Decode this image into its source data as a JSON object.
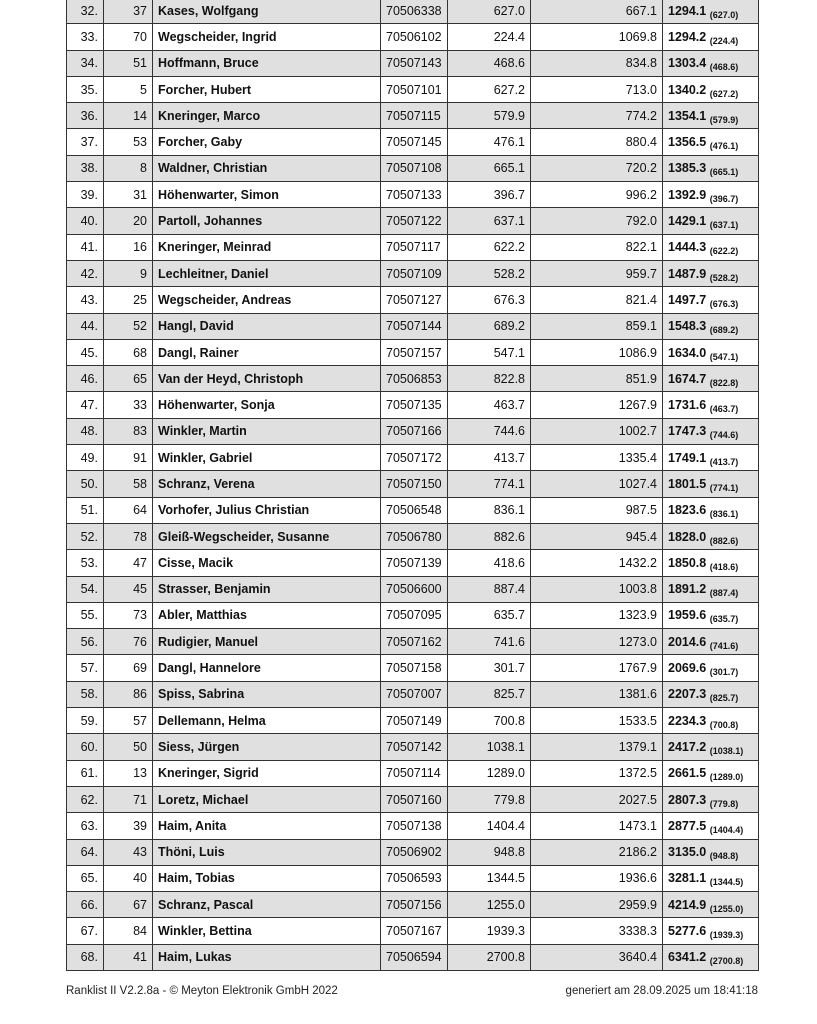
{
  "rows": [
    {
      "rank": "32.",
      "start": "37",
      "name": "Kases, Wolfgang",
      "id": "70506338",
      "v1": "627.0",
      "v2": "667.1",
      "total": "1294.1",
      "best": "(627.0)"
    },
    {
      "rank": "33.",
      "start": "70",
      "name": "Wegscheider, Ingrid",
      "id": "70506102",
      "v1": "224.4",
      "v2": "1069.8",
      "total": "1294.2",
      "best": "(224.4)"
    },
    {
      "rank": "34.",
      "start": "51",
      "name": "Hoffmann, Bruce",
      "id": "70507143",
      "v1": "468.6",
      "v2": "834.8",
      "total": "1303.4",
      "best": "(468.6)"
    },
    {
      "rank": "35.",
      "start": "5",
      "name": "Forcher, Hubert",
      "id": "70507101",
      "v1": "627.2",
      "v2": "713.0",
      "total": "1340.2",
      "best": "(627.2)"
    },
    {
      "rank": "36.",
      "start": "14",
      "name": "Kneringer, Marco",
      "id": "70507115",
      "v1": "579.9",
      "v2": "774.2",
      "total": "1354.1",
      "best": "(579.9)"
    },
    {
      "rank": "37.",
      "start": "53",
      "name": "Forcher, Gaby",
      "id": "70507145",
      "v1": "476.1",
      "v2": "880.4",
      "total": "1356.5",
      "best": "(476.1)"
    },
    {
      "rank": "38.",
      "start": "8",
      "name": "Waldner, Christian",
      "id": "70507108",
      "v1": "665.1",
      "v2": "720.2",
      "total": "1385.3",
      "best": "(665.1)"
    },
    {
      "rank": "39.",
      "start": "31",
      "name": "Höhenwarter, Simon",
      "id": "70507133",
      "v1": "396.7",
      "v2": "996.2",
      "total": "1392.9",
      "best": "(396.7)"
    },
    {
      "rank": "40.",
      "start": "20",
      "name": "Partoll, Johannes",
      "id": "70507122",
      "v1": "637.1",
      "v2": "792.0",
      "total": "1429.1",
      "best": "(637.1)"
    },
    {
      "rank": "41.",
      "start": "16",
      "name": "Kneringer, Meinrad",
      "id": "70507117",
      "v1": "622.2",
      "v2": "822.1",
      "total": "1444.3",
      "best": "(622.2)"
    },
    {
      "rank": "42.",
      "start": "9",
      "name": "Lechleitner, Daniel",
      "id": "70507109",
      "v1": "528.2",
      "v2": "959.7",
      "total": "1487.9",
      "best": "(528.2)"
    },
    {
      "rank": "43.",
      "start": "25",
      "name": "Wegscheider, Andreas",
      "id": "70507127",
      "v1": "676.3",
      "v2": "821.4",
      "total": "1497.7",
      "best": "(676.3)"
    },
    {
      "rank": "44.",
      "start": "52",
      "name": "Hangl, David",
      "id": "70507144",
      "v1": "689.2",
      "v2": "859.1",
      "total": "1548.3",
      "best": "(689.2)"
    },
    {
      "rank": "45.",
      "start": "68",
      "name": "Dangl, Rainer",
      "id": "70507157",
      "v1": "547.1",
      "v2": "1086.9",
      "total": "1634.0",
      "best": "(547.1)"
    },
    {
      "rank": "46.",
      "start": "65",
      "name": "Van der Heyd, Christoph",
      "id": "70506853",
      "v1": "822.8",
      "v2": "851.9",
      "total": "1674.7",
      "best": "(822.8)"
    },
    {
      "rank": "47.",
      "start": "33",
      "name": "Höhenwarter, Sonja",
      "id": "70507135",
      "v1": "463.7",
      "v2": "1267.9",
      "total": "1731.6",
      "best": "(463.7)"
    },
    {
      "rank": "48.",
      "start": "83",
      "name": "Winkler, Martin",
      "id": "70507166",
      "v1": "744.6",
      "v2": "1002.7",
      "total": "1747.3",
      "best": "(744.6)"
    },
    {
      "rank": "49.",
      "start": "91",
      "name": "Winkler, Gabriel",
      "id": "70507172",
      "v1": "413.7",
      "v2": "1335.4",
      "total": "1749.1",
      "best": "(413.7)"
    },
    {
      "rank": "50.",
      "start": "58",
      "name": "Schranz, Verena",
      "id": "70507150",
      "v1": "774.1",
      "v2": "1027.4",
      "total": "1801.5",
      "best": "(774.1)"
    },
    {
      "rank": "51.",
      "start": "64",
      "name": "Vorhofer, Julius Christian",
      "id": "70506548",
      "v1": "836.1",
      "v2": "987.5",
      "total": "1823.6",
      "best": "(836.1)"
    },
    {
      "rank": "52.",
      "start": "78",
      "name": "Gleiß-Wegscheider, Susanne",
      "id": "70506780",
      "v1": "882.6",
      "v2": "945.4",
      "total": "1828.0",
      "best": "(882.6)"
    },
    {
      "rank": "53.",
      "start": "47",
      "name": "Cisse, Macik",
      "id": "70507139",
      "v1": "418.6",
      "v2": "1432.2",
      "total": "1850.8",
      "best": "(418.6)"
    },
    {
      "rank": "54.",
      "start": "45",
      "name": "Strasser, Benjamin",
      "id": "70506600",
      "v1": "887.4",
      "v2": "1003.8",
      "total": "1891.2",
      "best": "(887.4)"
    },
    {
      "rank": "55.",
      "start": "73",
      "name": "Abler, Matthias",
      "id": "70507095",
      "v1": "635.7",
      "v2": "1323.9",
      "total": "1959.6",
      "best": "(635.7)"
    },
    {
      "rank": "56.",
      "start": "76",
      "name": "Rudigier, Manuel",
      "id": "70507162",
      "v1": "741.6",
      "v2": "1273.0",
      "total": "2014.6",
      "best": "(741.6)"
    },
    {
      "rank": "57.",
      "start": "69",
      "name": "Dangl, Hannelore",
      "id": "70507158",
      "v1": "301.7",
      "v2": "1767.9",
      "total": "2069.6",
      "best": "(301.7)"
    },
    {
      "rank": "58.",
      "start": "86",
      "name": "Spiss, Sabrina",
      "id": "70507007",
      "v1": "825.7",
      "v2": "1381.6",
      "total": "2207.3",
      "best": "(825.7)"
    },
    {
      "rank": "59.",
      "start": "57",
      "name": "Dellemann, Helma",
      "id": "70507149",
      "v1": "700.8",
      "v2": "1533.5",
      "total": "2234.3",
      "best": "(700.8)"
    },
    {
      "rank": "60.",
      "start": "50",
      "name": "Siess, Jürgen",
      "id": "70507142",
      "v1": "1038.1",
      "v2": "1379.1",
      "total": "2417.2",
      "best": "(1038.1)"
    },
    {
      "rank": "61.",
      "start": "13",
      "name": "Kneringer, Sigrid",
      "id": "70507114",
      "v1": "1289.0",
      "v2": "1372.5",
      "total": "2661.5",
      "best": "(1289.0)"
    },
    {
      "rank": "62.",
      "start": "71",
      "name": "Loretz, Michael",
      "id": "70507160",
      "v1": "779.8",
      "v2": "2027.5",
      "total": "2807.3",
      "best": "(779.8)"
    },
    {
      "rank": "63.",
      "start": "39",
      "name": "Haim, Anita",
      "id": "70507138",
      "v1": "1404.4",
      "v2": "1473.1",
      "total": "2877.5",
      "best": "(1404.4)"
    },
    {
      "rank": "64.",
      "start": "43",
      "name": "Thöni, Luis",
      "id": "70506902",
      "v1": "948.8",
      "v2": "2186.2",
      "total": "3135.0",
      "best": "(948.8)"
    },
    {
      "rank": "65.",
      "start": "40",
      "name": "Haim, Tobias",
      "id": "70506593",
      "v1": "1344.5",
      "v2": "1936.6",
      "total": "3281.1",
      "best": "(1344.5)"
    },
    {
      "rank": "66.",
      "start": "67",
      "name": "Schranz, Pascal",
      "id": "70507156",
      "v1": "1255.0",
      "v2": "2959.9",
      "total": "4214.9",
      "best": "(1255.0)"
    },
    {
      "rank": "67.",
      "start": "84",
      "name": "Winkler, Bettina",
      "id": "70507167",
      "v1": "1939.3",
      "v2": "3338.3",
      "total": "5277.6",
      "best": "(1939.3)"
    },
    {
      "rank": "68.",
      "start": "41",
      "name": "Haim, Lukas",
      "id": "70506594",
      "v1": "2700.8",
      "v2": "3640.4",
      "total": "6341.2",
      "best": "(2700.8)"
    }
  ],
  "footer": {
    "left": "Ranklist II V2.2.8a - © Meyton Elektronik GmbH 2022",
    "right": "generiert am 28.09.2025 um 18:41:18"
  }
}
